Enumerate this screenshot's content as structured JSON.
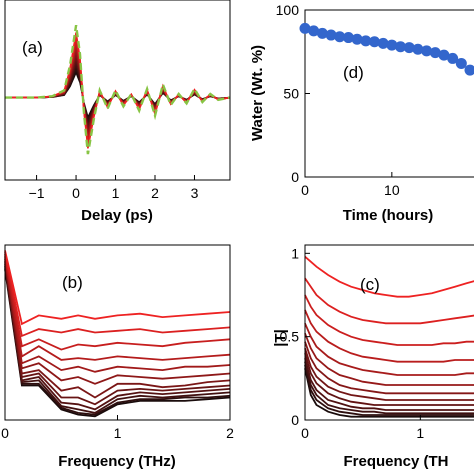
{
  "colors": {
    "light_red": "#ee2222",
    "dark": "#1a0c0c",
    "reference": "#88c444",
    "water": "#3366cc"
  },
  "chart_data": [
    {
      "id": "a",
      "type": "line",
      "panel_label": "(a)",
      "xlabel": "Delay (ps)",
      "ylabel": "",
      "xlim": [
        -1.8,
        3.9
      ],
      "xticks": [
        -1,
        0,
        1,
        2,
        3
      ],
      "xtick_labels": [
        "−1",
        "0",
        "1",
        "2",
        "3"
      ],
      "reference_series": {
        "style": "dashed",
        "x": [
          -1.8,
          -1.0,
          -0.6,
          -0.3,
          -0.15,
          0.0,
          0.1,
          0.2,
          0.3,
          0.45,
          0.6,
          0.8,
          1.0,
          1.2,
          1.4,
          1.6,
          1.8,
          2.0,
          2.2,
          2.4,
          2.6,
          2.8,
          3.0,
          3.2,
          3.4,
          3.6,
          3.9
        ],
        "y": [
          0.0,
          0.0,
          0.02,
          0.1,
          0.45,
          1.0,
          0.6,
          -0.2,
          -0.78,
          -0.3,
          0.1,
          -0.15,
          0.1,
          -0.12,
          0.05,
          -0.18,
          0.12,
          -0.25,
          0.18,
          -0.1,
          0.05,
          -0.08,
          0.12,
          -0.06,
          0.05,
          -0.03,
          0.0
        ]
      },
      "series_count": 12,
      "series_note": "wave traces grade from dark to light red as amplitude increases"
    },
    {
      "id": "d",
      "type": "scatter",
      "panel_label": "(d)",
      "xlabel": "Time (hours)",
      "ylabel": "Water (Wt. %)",
      "xlim": [
        0,
        19
      ],
      "ylim": [
        0,
        100
      ],
      "xticks": [
        0,
        10
      ],
      "yticks": [
        0,
        50,
        100
      ],
      "x": [
        0,
        1,
        2,
        3,
        4,
        5,
        6,
        7,
        8,
        9,
        10,
        11,
        12,
        13,
        14,
        15,
        16,
        17,
        18,
        19
      ],
      "y": [
        89,
        87.5,
        86,
        85,
        84,
        83.5,
        82.5,
        81.5,
        81,
        80,
        79,
        78,
        77.5,
        76.5,
        75.5,
        74.5,
        73,
        71,
        68,
        64
      ]
    },
    {
      "id": "b",
      "type": "line",
      "panel_label": "(b)",
      "xlabel": "Frequency (THz)",
      "ylabel": "",
      "xlim": [
        0,
        2
      ],
      "xticks": [
        0,
        1,
        2
      ],
      "x": [
        0.0,
        0.15,
        0.3,
        0.5,
        0.65,
        0.8,
        1.0,
        1.2,
        1.4,
        1.6,
        1.8,
        2.0
      ],
      "series": [
        {
          "values": [
            0.98,
            0.55,
            0.6,
            0.58,
            0.6,
            0.58,
            0.6,
            0.61,
            0.59,
            0.6,
            0.61,
            0.62
          ]
        },
        {
          "values": [
            0.97,
            0.48,
            0.52,
            0.5,
            0.52,
            0.5,
            0.51,
            0.52,
            0.5,
            0.51,
            0.52,
            0.53
          ]
        },
        {
          "values": [
            0.96,
            0.42,
            0.46,
            0.4,
            0.43,
            0.42,
            0.44,
            0.43,
            0.42,
            0.44,
            0.45,
            0.46
          ]
        },
        {
          "values": [
            0.95,
            0.36,
            0.42,
            0.34,
            0.35,
            0.34,
            0.36,
            0.35,
            0.34,
            0.35,
            0.36,
            0.37
          ]
        },
        {
          "values": [
            0.94,
            0.32,
            0.36,
            0.28,
            0.3,
            0.27,
            0.3,
            0.29,
            0.28,
            0.3,
            0.3,
            0.31
          ]
        },
        {
          "values": [
            0.93,
            0.29,
            0.32,
            0.22,
            0.24,
            0.2,
            0.25,
            0.24,
            0.23,
            0.24,
            0.25,
            0.26
          ]
        },
        {
          "values": [
            0.92,
            0.26,
            0.28,
            0.16,
            0.18,
            0.12,
            0.2,
            0.2,
            0.18,
            0.19,
            0.21,
            0.22
          ]
        },
        {
          "values": [
            0.91,
            0.24,
            0.26,
            0.12,
            0.12,
            0.08,
            0.16,
            0.17,
            0.16,
            0.17,
            0.18,
            0.19
          ]
        },
        {
          "values": [
            0.9,
            0.22,
            0.24,
            0.09,
            0.08,
            0.05,
            0.13,
            0.15,
            0.14,
            0.15,
            0.16,
            0.17
          ]
        },
        {
          "values": [
            0.89,
            0.21,
            0.22,
            0.07,
            0.05,
            0.03,
            0.11,
            0.13,
            0.12,
            0.13,
            0.14,
            0.15
          ]
        },
        {
          "values": [
            0.88,
            0.2,
            0.2,
            0.06,
            0.03,
            0.02,
            0.09,
            0.11,
            0.11,
            0.12,
            0.12,
            0.13
          ]
        },
        {
          "values": [
            0.87,
            0.19,
            0.19,
            0.05,
            0.02,
            0.01,
            0.08,
            0.1,
            0.1,
            0.1,
            0.11,
            0.12
          ]
        }
      ]
    },
    {
      "id": "c",
      "type": "line",
      "panel_label": "(c)",
      "xlabel": "Frequency (TH",
      "ylabel": "|T|",
      "xlim": [
        0,
        1.5
      ],
      "ylim": [
        0,
        1.05
      ],
      "xticks": [
        0,
        1
      ],
      "yticks": [
        0,
        0.5,
        1
      ],
      "ytick_labels": [
        "0",
        "0.5",
        "1"
      ],
      "x": [
        0,
        0.05,
        0.1,
        0.2,
        0.3,
        0.4,
        0.5,
        0.6,
        0.7,
        0.8,
        0.9,
        1.0,
        1.1,
        1.2,
        1.3,
        1.4,
        1.5
      ],
      "series": [
        {
          "values": [
            0.98,
            0.95,
            0.92,
            0.87,
            0.83,
            0.8,
            0.78,
            0.76,
            0.75,
            0.74,
            0.74,
            0.75,
            0.76,
            0.78,
            0.8,
            0.82,
            0.84
          ]
        },
        {
          "values": [
            0.85,
            0.8,
            0.75,
            0.69,
            0.65,
            0.62,
            0.6,
            0.59,
            0.58,
            0.58,
            0.58,
            0.58,
            0.59,
            0.6,
            0.61,
            0.62,
            0.63
          ]
        },
        {
          "values": [
            0.75,
            0.68,
            0.63,
            0.57,
            0.53,
            0.5,
            0.48,
            0.47,
            0.46,
            0.45,
            0.45,
            0.45,
            0.45,
            0.46,
            0.46,
            0.47,
            0.47
          ]
        },
        {
          "values": [
            0.66,
            0.58,
            0.53,
            0.47,
            0.43,
            0.4,
            0.38,
            0.37,
            0.36,
            0.35,
            0.35,
            0.35,
            0.35,
            0.35,
            0.36,
            0.36,
            0.36
          ]
        },
        {
          "values": [
            0.58,
            0.5,
            0.44,
            0.38,
            0.34,
            0.32,
            0.3,
            0.29,
            0.28,
            0.27,
            0.27,
            0.27,
            0.27,
            0.27,
            0.27,
            0.28,
            0.28
          ]
        },
        {
          "values": [
            0.52,
            0.43,
            0.37,
            0.31,
            0.27,
            0.25,
            0.23,
            0.22,
            0.21,
            0.21,
            0.21,
            0.21,
            0.21,
            0.21,
            0.21,
            0.21,
            0.21
          ]
        },
        {
          "values": [
            0.47,
            0.37,
            0.31,
            0.25,
            0.21,
            0.19,
            0.18,
            0.17,
            0.16,
            0.16,
            0.16,
            0.16,
            0.16,
            0.16,
            0.16,
            0.16,
            0.16
          ]
        },
        {
          "values": [
            0.43,
            0.32,
            0.26,
            0.2,
            0.17,
            0.15,
            0.14,
            0.13,
            0.12,
            0.12,
            0.12,
            0.12,
            0.12,
            0.12,
            0.12,
            0.12,
            0.12
          ]
        },
        {
          "values": [
            0.4,
            0.28,
            0.22,
            0.16,
            0.13,
            0.11,
            0.1,
            0.09,
            0.09,
            0.09,
            0.09,
            0.09,
            0.09,
            0.09,
            0.09,
            0.09,
            0.09
          ]
        },
        {
          "values": [
            0.37,
            0.24,
            0.18,
            0.12,
            0.1,
            0.08,
            0.07,
            0.07,
            0.06,
            0.06,
            0.06,
            0.06,
            0.06,
            0.06,
            0.06,
            0.06,
            0.06
          ]
        },
        {
          "values": [
            0.35,
            0.21,
            0.15,
            0.09,
            0.07,
            0.06,
            0.05,
            0.05,
            0.04,
            0.04,
            0.04,
            0.04,
            0.04,
            0.04,
            0.04,
            0.04,
            0.04
          ]
        },
        {
          "values": [
            0.33,
            0.18,
            0.12,
            0.07,
            0.05,
            0.04,
            0.03,
            0.03,
            0.03,
            0.03,
            0.03,
            0.03,
            0.03,
            0.03,
            0.03,
            0.03,
            0.03
          ]
        },
        {
          "values": [
            0.31,
            0.15,
            0.09,
            0.05,
            0.03,
            0.02,
            0.02,
            0.02,
            0.02,
            0.02,
            0.02,
            0.02,
            0.02,
            0.02,
            0.02,
            0.02,
            0.02
          ]
        }
      ]
    }
  ]
}
